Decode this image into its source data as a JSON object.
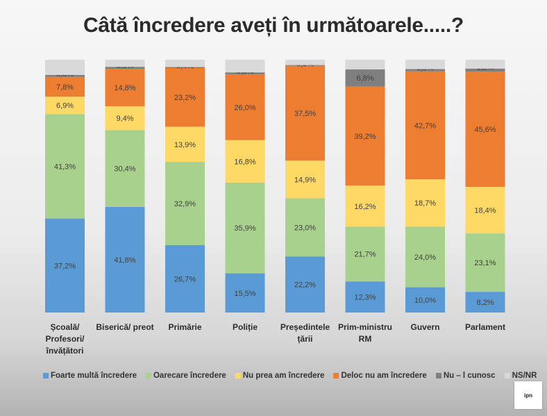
{
  "chart_data": {
    "type": "bar",
    "stacked": true,
    "percent_stacked": true,
    "title": "Câtă încredere aveți în următoarele.....?",
    "categories": [
      [
        "Școală/",
        "Profesori/",
        "învățători"
      ],
      [
        "Biserică/ preot"
      ],
      [
        "Primărie"
      ],
      [
        "Poliție"
      ],
      [
        "Președintele",
        "țării"
      ],
      [
        "Prim-ministru",
        "RM"
      ],
      [
        "Guvern"
      ],
      [
        "Parlament"
      ]
    ],
    "series": [
      {
        "name": "Foarte multă încredere",
        "color": "#5b9bd5",
        "values": [
          37.2,
          41.8,
          26.7,
          15.5,
          22.2,
          12.3,
          10.0,
          8.2
        ]
      },
      {
        "name": "Oarecare încredere",
        "color": "#a9d18e",
        "values": [
          41.3,
          30.4,
          32.9,
          35.9,
          23.0,
          21.7,
          24.0,
          23.1
        ]
      },
      {
        "name": "Nu prea am încredere",
        "color": "#ffd966",
        "values": [
          6.9,
          9.4,
          13.9,
          16.8,
          14.9,
          16.2,
          18.7,
          18.4
        ]
      },
      {
        "name": "Deloc nu am încredere",
        "color": "#ed7d31",
        "values": [
          7.8,
          14.8,
          23.2,
          26.0,
          37.5,
          39.2,
          42.7,
          45.6
        ]
      },
      {
        "name": "Nu – l cunosc",
        "color": "#7f7f7f",
        "values": [
          0.8,
          0.8,
          0.4,
          0.8,
          0.3,
          6.8,
          0.9,
          1.2
        ]
      },
      {
        "name": "NS/NR",
        "color": "#d9d9d9",
        "values": [
          6.0,
          2.8,
          2.9,
          5.0,
          2.1,
          3.8,
          3.7,
          3.5
        ]
      }
    ],
    "labels": [
      [
        "37,2%",
        "41,8%",
        "26,7%",
        "15,5%",
        "22,2%",
        "12,3%",
        "10,0%",
        "8,2%"
      ],
      [
        "41,3%",
        "30,4%",
        "32,9%",
        "35,9%",
        "23,0%",
        "21,7%",
        "24,0%",
        "23,1%"
      ],
      [
        "6,9%",
        "9,4%",
        "13,9%",
        "16,8%",
        "14,9%",
        "16,2%",
        "18,7%",
        "18,4%"
      ],
      [
        "7,8%",
        "14,8%",
        "23,2%",
        "26,0%",
        "37,5%",
        "39,2%",
        "42,7%",
        "45,6%"
      ],
      [
        "0,8%",
        "0,8%",
        "0,4%",
        "0,8%",
        "0,3%",
        "6,8%",
        "0,9%",
        "1,2%"
      ],
      [
        "",
        "",
        "",
        "",
        "",
        "",
        "",
        ""
      ]
    ],
    "ylim": [
      0,
      100
    ],
    "legend_position": "bottom"
  },
  "logo_text": "ipn"
}
